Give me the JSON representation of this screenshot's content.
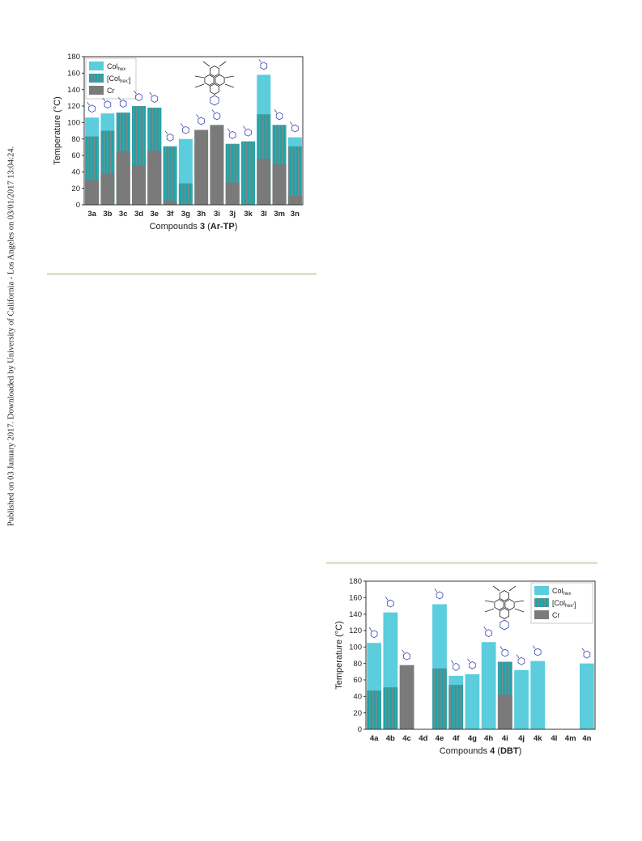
{
  "side_note": "Published on 03 January 2017. Downloaded by University of California - Los Angeles on 03/01/2017 13:04:24.",
  "legend_labels": {
    "col_hex_main": "Col",
    "col_hex_sub": "hex",
    "col_hex_p_main": "[Col",
    "col_hex_p_sub": "hex'",
    "col_hex_p_close": "]",
    "cr": "Cr"
  },
  "colors": {
    "col_hex": "#5bcddc",
    "col_hex_prime": "#1fa3a8",
    "col_hex_prime_stripe": "#7c8a8a",
    "cr": "#7a7a7a",
    "structure": "#3a48b0"
  },
  "chart_data": [
    {
      "type": "bar",
      "stacking": "overlay",
      "categories": [
        "3a",
        "3b",
        "3c",
        "3d",
        "3e",
        "3f",
        "3g",
        "3h",
        "3i",
        "3j",
        "3k",
        "3l",
        "3m",
        "3n"
      ],
      "series": [
        {
          "name": "Colhex",
          "values": [
            106,
            111,
            112,
            120,
            118,
            71,
            80,
            0,
            0,
            74,
            77,
            158,
            97,
            82
          ]
        },
        {
          "name": "[Colhex']",
          "values": [
            83,
            90,
            112,
            120,
            118,
            71,
            26,
            0,
            0,
            74,
            77,
            110,
            97,
            71
          ]
        },
        {
          "name": "Cr",
          "values": [
            30,
            38,
            65,
            48,
            66,
            5,
            0,
            91,
            97,
            27,
            0,
            56,
            49,
            11
          ]
        }
      ],
      "xlabel_prefix": "Compounds ",
      "xlabel_bold": "3",
      "xlabel_suffix_open": " (",
      "xlabel_suffix_bold": "Ar-TP",
      "xlabel_suffix_close": ")",
      "ylabel": "Temperature (°C)",
      "ylim": [
        0,
        180
      ],
      "yticks": [
        0,
        20,
        40,
        60,
        80,
        100,
        120,
        140,
        160,
        180
      ],
      "legend_position": "top-left",
      "grid": false
    },
    {
      "type": "bar",
      "stacking": "overlay",
      "categories": [
        "4a",
        "4b",
        "4c",
        "4d",
        "4e",
        "4f",
        "4g",
        "4h",
        "4i",
        "4j",
        "4k",
        "4l",
        "4m",
        "4n"
      ],
      "series": [
        {
          "name": "Colhex",
          "values": [
            105,
            142,
            0,
            0,
            152,
            65,
            67,
            106,
            82,
            72,
            83,
            0,
            0,
            80
          ]
        },
        {
          "name": "[Colhex']",
          "values": [
            47,
            51,
            0,
            0,
            74,
            54,
            0,
            0,
            82,
            0,
            0,
            0,
            0,
            0
          ]
        },
        {
          "name": "Cr",
          "values": [
            0,
            0,
            78,
            0,
            0,
            0,
            0,
            0,
            42,
            0,
            0,
            0,
            0,
            0
          ]
        }
      ],
      "xlabel_prefix": "Compounds ",
      "xlabel_bold": "4",
      "xlabel_suffix_open": " (",
      "xlabel_suffix_bold": "DBT",
      "xlabel_suffix_close": ")",
      "ylabel": "Temperature (°C)",
      "ylim": [
        0,
        180
      ],
      "yticks": [
        0,
        20,
        40,
        60,
        80,
        100,
        120,
        140,
        160,
        180
      ],
      "legend_position": "top-right",
      "grid": false
    }
  ]
}
